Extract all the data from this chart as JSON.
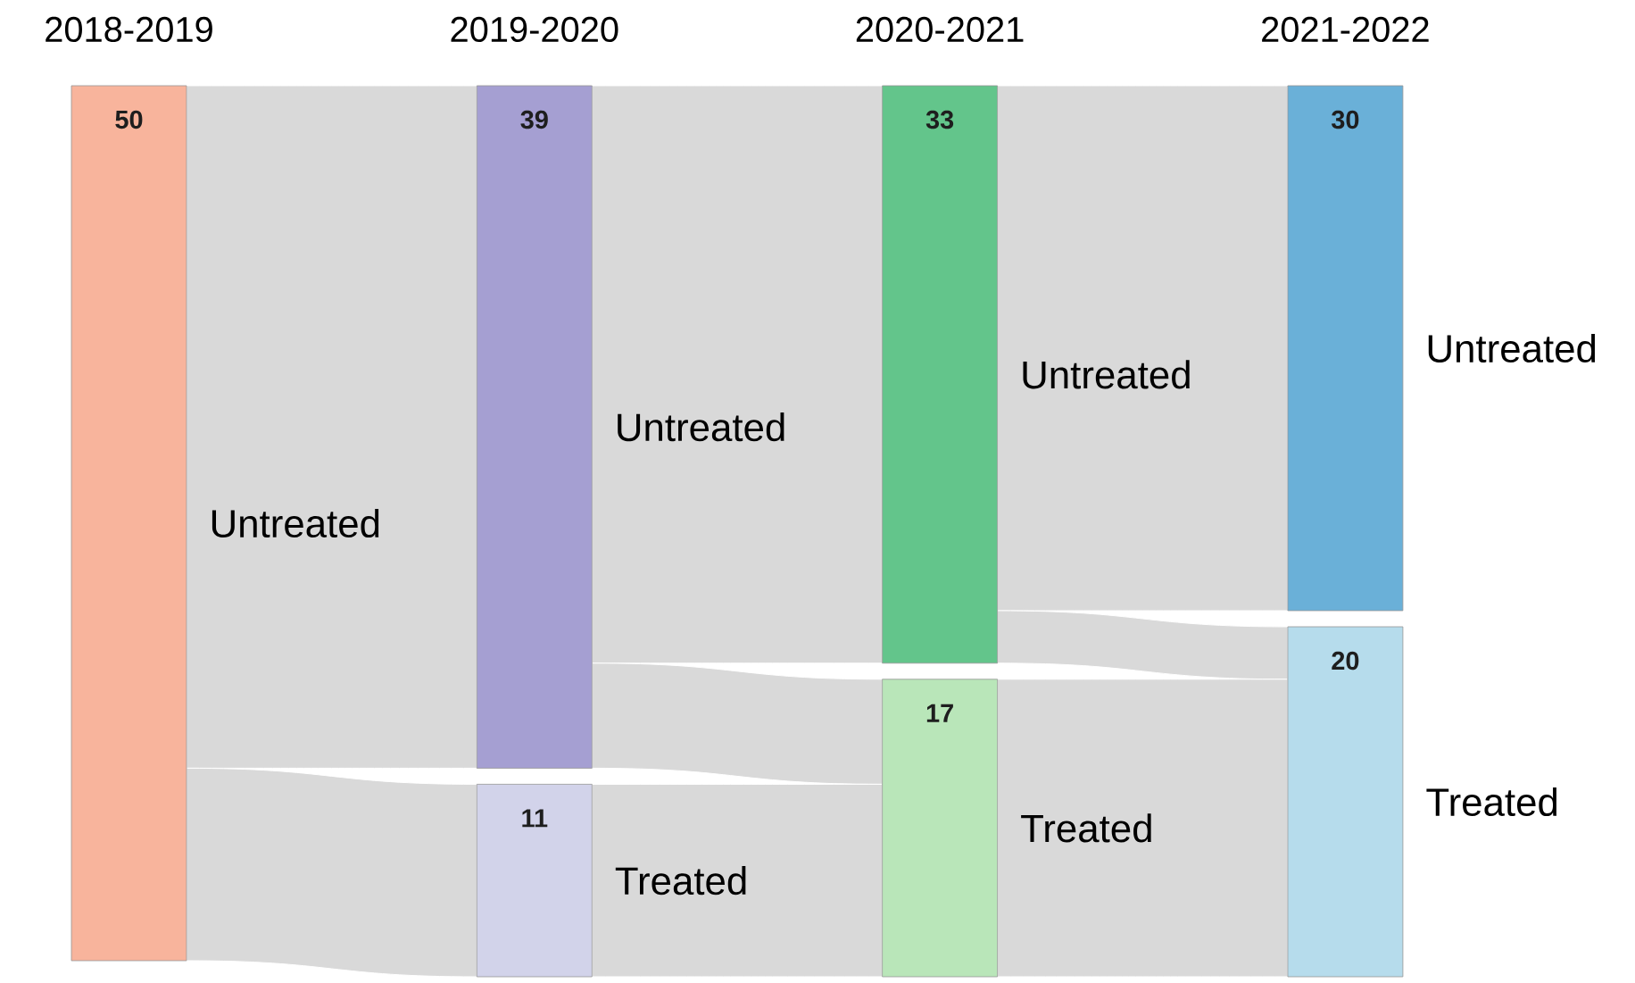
{
  "chart_data": {
    "type": "other",
    "categories": [
      "2018-2019",
      "2019-2020",
      "2020-2021",
      "2021-2022"
    ],
    "series": [
      {
        "name": "Untreated",
        "values": [
          50,
          39,
          33,
          30
        ],
        "colors": [
          "#f8b49c",
          "#a59fd2",
          "#63c58b",
          "#6ab0d8"
        ]
      },
      {
        "name": "Treated",
        "values": [
          null,
          11,
          17,
          20
        ],
        "colors": [
          null,
          "#d2d3ea",
          "#b9e6b9",
          "#b6dcec"
        ]
      }
    ],
    "data_labels": true
  }
}
